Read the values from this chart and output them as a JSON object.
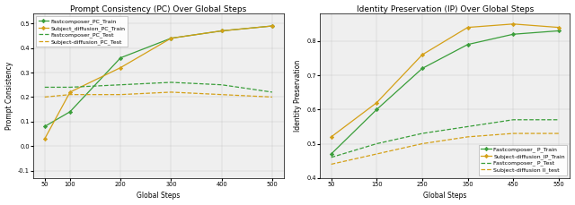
{
  "left_title": "Prompt Consistency (PC) Over Global Steps",
  "right_title": "Identity Preservation (IP) Over Global Steps",
  "left_ylabel": "Prompt Consistency",
  "right_ylabel": "Identity Preservation",
  "xlabel": "Global Steps",
  "x_ticks_left": [
    50,
    100,
    200,
    300,
    400,
    500
  ],
  "x_ticks_right": [
    50,
    150,
    250,
    350,
    450,
    550
  ],
  "left": {
    "fc_train": {
      "label": "Fastcomposer_PC_Train",
      "color": "#3a9e3a",
      "linestyle": "-",
      "marker": "D",
      "x": [
        50,
        100,
        200,
        300,
        400,
        500
      ],
      "y": [
        0.08,
        0.14,
        0.36,
        0.44,
        0.47,
        0.49
      ]
    },
    "sd_train": {
      "label": "Subject_diffusion_PC_Train",
      "color": "#d4a017",
      "linestyle": "-",
      "marker": "D",
      "x": [
        50,
        100,
        200,
        300,
        400,
        500
      ],
      "y": [
        0.03,
        0.22,
        0.32,
        0.44,
        0.47,
        0.49
      ]
    },
    "fc_test": {
      "label": "Fastcomposer_PC_Test",
      "color": "#3a9e3a",
      "linestyle": "--",
      "marker": null,
      "x": [
        50,
        100,
        200,
        300,
        400,
        500
      ],
      "y": [
        0.24,
        0.24,
        0.25,
        0.26,
        0.25,
        0.22
      ]
    },
    "sd_test": {
      "label": "Subject-diffusion_PC_Test",
      "color": "#d4a017",
      "linestyle": "--",
      "marker": null,
      "x": [
        50,
        100,
        200,
        300,
        400,
        500
      ],
      "y": [
        0.2,
        0.21,
        0.21,
        0.22,
        0.21,
        0.2
      ]
    }
  },
  "right": {
    "fc_train": {
      "label": "Fastcomposer_ P_Train",
      "color": "#3a9e3a",
      "linestyle": "-",
      "marker": "D",
      "x": [
        50,
        150,
        250,
        350,
        450,
        550
      ],
      "y": [
        0.47,
        0.6,
        0.72,
        0.79,
        0.82,
        0.83
      ]
    },
    "sd_train": {
      "label": "Subject-diffusion_IP_Train",
      "color": "#d4a017",
      "linestyle": "-",
      "marker": "D",
      "x": [
        50,
        150,
        250,
        350,
        450,
        550
      ],
      "y": [
        0.52,
        0.62,
        0.76,
        0.84,
        0.85,
        0.84
      ]
    },
    "fc_test": {
      "label": "Fastcomposer_ P_Test",
      "color": "#3a9e3a",
      "linestyle": "--",
      "marker": null,
      "x": [
        50,
        150,
        250,
        350,
        450,
        550
      ],
      "y": [
        0.46,
        0.5,
        0.53,
        0.55,
        0.57,
        0.57
      ]
    },
    "sd_test": {
      "label": "Subject-diffusion II_test",
      "color": "#d4a017",
      "linestyle": "--",
      "marker": null,
      "x": [
        50,
        150,
        250,
        350,
        450,
        550
      ],
      "y": [
        0.44,
        0.47,
        0.5,
        0.52,
        0.53,
        0.53
      ]
    }
  },
  "left_ylim": [
    -0.13,
    0.54
  ],
  "right_ylim": [
    0.41,
    0.88
  ],
  "left_yticks": [
    -0.1,
    0.0,
    0.1,
    0.2,
    0.3,
    0.4,
    0.5
  ],
  "right_yticks": [
    0.4,
    0.5,
    0.6,
    0.7,
    0.8
  ],
  "bg_color": "#ffffff",
  "plot_bg_color": "#efefef",
  "legend_fontsize": 4.5,
  "title_fontsize": 6.5,
  "tick_fontsize": 4.8,
  "label_fontsize": 5.5,
  "linewidth": 0.9,
  "markersize": 2.2
}
